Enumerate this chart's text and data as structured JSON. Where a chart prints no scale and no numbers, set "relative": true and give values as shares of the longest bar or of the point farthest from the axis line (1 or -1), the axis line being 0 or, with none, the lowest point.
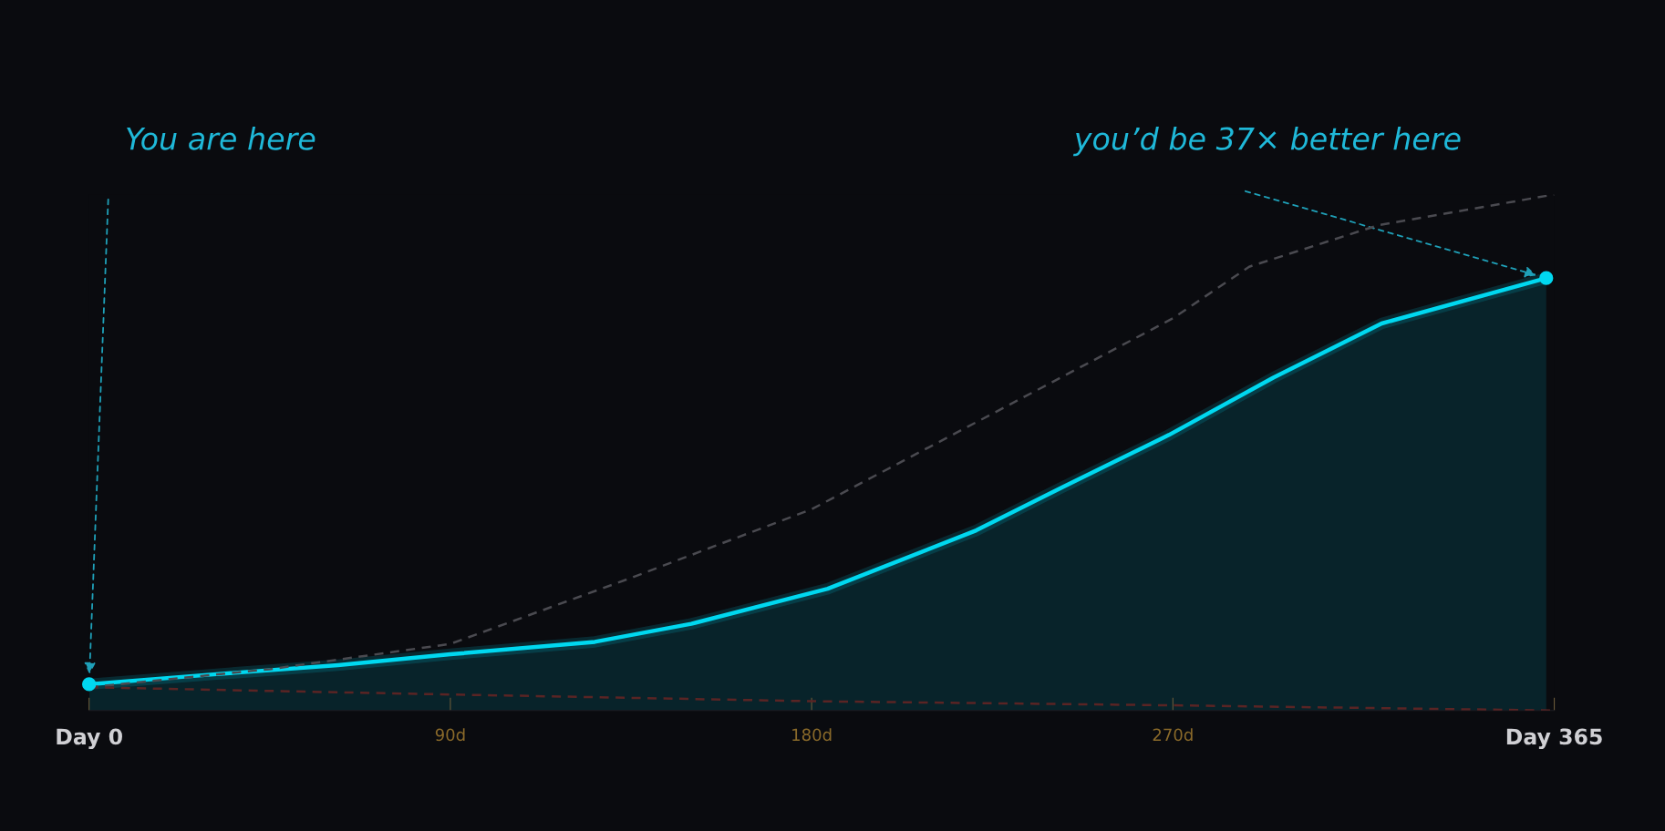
{
  "chart_data": {
    "type": "area",
    "relative": true,
    "xlim": [
      0,
      365
    ],
    "xticks": [
      {
        "value": 0,
        "label": "Day 0"
      },
      {
        "value": 90,
        "label": "90d"
      },
      {
        "value": 180,
        "label": "180d"
      },
      {
        "value": 270,
        "label": "270d"
      },
      {
        "value": 365,
        "label": "Day 365"
      }
    ],
    "series": [
      {
        "type": "line",
        "color": "#4a4a50",
        "line_style": "dashed",
        "x": [
          0,
          45,
          90,
          135,
          180,
          225,
          270,
          289,
          321,
          365
        ],
        "values": [
          0.045,
          0.08,
          0.129,
          0.257,
          0.39,
          0.575,
          0.76,
          0.86,
          0.94,
          1.0
        ]
      },
      {
        "type": "line",
        "color": "#5a2424",
        "line_style": "dashed",
        "x": [
          0,
          90,
          180,
          270,
          365
        ],
        "values": [
          0.045,
          0.031,
          0.018,
          0.01,
          0.0
        ]
      },
      {
        "color": "#00d8f0",
        "line_style": "solid",
        "x": [
          0,
          31,
          62,
          90,
          126,
          150,
          184,
          221,
          242,
          269,
          295,
          322,
          363
        ],
        "values": [
          0.051,
          0.07,
          0.088,
          0.109,
          0.133,
          0.168,
          0.236,
          0.349,
          0.431,
          0.534,
          0.645,
          0.75,
          0.838
        ]
      }
    ],
    "annotations": [
      "You are here",
      "you’d be 37× better here"
    ]
  }
}
